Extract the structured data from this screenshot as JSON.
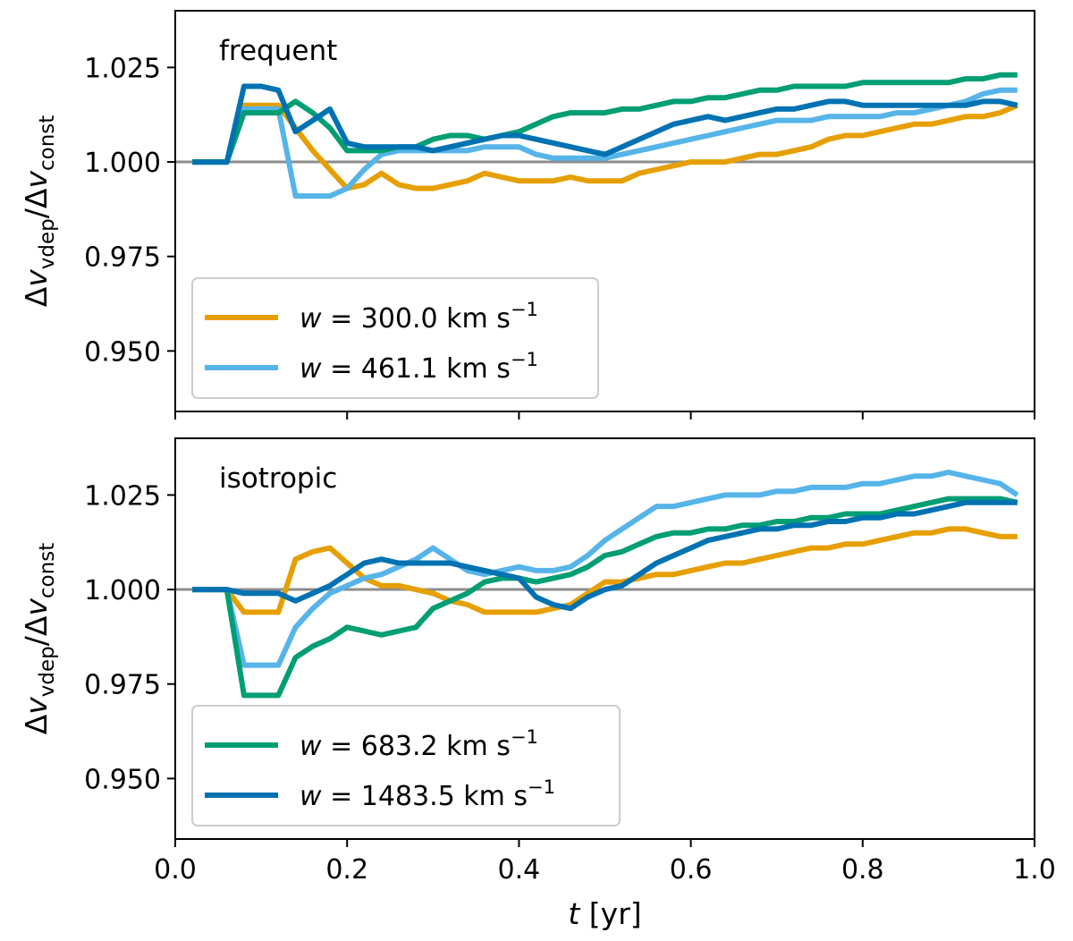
{
  "chart_data": [
    {
      "type": "line",
      "panel": "top",
      "annotation": "frequent",
      "ylabel": "Δv_vdep/Δv_const",
      "xlim": [
        0.0,
        1.0
      ],
      "ylim": [
        0.934,
        1.04
      ],
      "yticks": [
        0.95,
        0.975,
        1.0,
        1.025
      ],
      "ytick_labels": [
        "0.950",
        "0.975",
        "1.000",
        "1.025"
      ],
      "xticks": [
        0.0,
        0.2,
        0.4,
        0.6,
        0.8,
        1.0
      ],
      "reference_line": 1.0,
      "legend_position": "lower-left",
      "legend_series": [
        0,
        1
      ],
      "x": [
        0.02,
        0.04,
        0.06,
        0.08,
        0.1,
        0.12,
        0.14,
        0.16,
        0.18,
        0.2,
        0.22,
        0.24,
        0.26,
        0.28,
        0.3,
        0.32,
        0.34,
        0.36,
        0.38,
        0.4,
        0.42,
        0.44,
        0.46,
        0.48,
        0.5,
        0.52,
        0.54,
        0.56,
        0.58,
        0.6,
        0.62,
        0.64,
        0.66,
        0.68,
        0.7,
        0.72,
        0.74,
        0.76,
        0.78,
        0.8,
        0.82,
        0.84,
        0.86,
        0.88,
        0.9,
        0.92,
        0.94,
        0.96,
        0.98
      ],
      "series": [
        {
          "name": "w = 300.0 km s⁻¹",
          "legend_prefix": "w",
          "legend_value": "= 300.0 km s",
          "legend_exp": "−1",
          "color": "#E69F00",
          "values": [
            1.0,
            1.0,
            1.0,
            1.015,
            1.015,
            1.015,
            1.009,
            1.003,
            0.998,
            0.993,
            0.994,
            0.997,
            0.994,
            0.993,
            0.993,
            0.994,
            0.995,
            0.997,
            0.996,
            0.995,
            0.995,
            0.995,
            0.996,
            0.995,
            0.995,
            0.995,
            0.997,
            0.998,
            0.999,
            1.0,
            1.0,
            1.0,
            1.001,
            1.002,
            1.002,
            1.003,
            1.004,
            1.006,
            1.007,
            1.007,
            1.008,
            1.009,
            1.01,
            1.01,
            1.011,
            1.012,
            1.012,
            1.013,
            1.015
          ]
        },
        {
          "name": "w = 461.1 km s⁻¹",
          "legend_prefix": "w",
          "legend_value": "= 461.1 km s",
          "legend_exp": "−1",
          "color": "#56B4E9",
          "values": [
            1.0,
            1.0,
            1.0,
            1.014,
            1.014,
            1.014,
            0.991,
            0.991,
            0.991,
            0.993,
            0.998,
            1.002,
            1.003,
            1.003,
            1.003,
            1.003,
            1.003,
            1.004,
            1.004,
            1.004,
            1.002,
            1.001,
            1.001,
            1.001,
            1.001,
            1.002,
            1.003,
            1.004,
            1.005,
            1.006,
            1.007,
            1.008,
            1.009,
            1.01,
            1.011,
            1.011,
            1.011,
            1.012,
            1.012,
            1.012,
            1.012,
            1.013,
            1.013,
            1.014,
            1.015,
            1.016,
            1.018,
            1.019,
            1.019
          ]
        },
        {
          "name": "w = 683.2 km s⁻¹",
          "color": "#009E73",
          "values": [
            1.0,
            1.0,
            1.0,
            1.013,
            1.013,
            1.013,
            1.016,
            1.013,
            1.009,
            1.003,
            1.003,
            1.003,
            1.004,
            1.004,
            1.006,
            1.007,
            1.007,
            1.006,
            1.007,
            1.008,
            1.01,
            1.012,
            1.013,
            1.013,
            1.013,
            1.014,
            1.014,
            1.015,
            1.016,
            1.016,
            1.017,
            1.017,
            1.018,
            1.019,
            1.019,
            1.02,
            1.02,
            1.02,
            1.02,
            1.021,
            1.021,
            1.021,
            1.021,
            1.021,
            1.021,
            1.022,
            1.022,
            1.023,
            1.023
          ]
        },
        {
          "name": "w = 1483.5 km s⁻¹",
          "color": "#0072B2",
          "values": [
            1.0,
            1.0,
            1.0,
            1.02,
            1.02,
            1.019,
            1.008,
            1.011,
            1.014,
            1.005,
            1.004,
            1.004,
            1.004,
            1.004,
            1.003,
            1.004,
            1.005,
            1.006,
            1.007,
            1.007,
            1.006,
            1.005,
            1.004,
            1.003,
            1.002,
            1.004,
            1.006,
            1.008,
            1.01,
            1.011,
            1.012,
            1.011,
            1.012,
            1.013,
            1.014,
            1.014,
            1.015,
            1.016,
            1.016,
            1.015,
            1.015,
            1.015,
            1.015,
            1.015,
            1.015,
            1.015,
            1.016,
            1.016,
            1.015
          ]
        }
      ]
    },
    {
      "type": "line",
      "panel": "bottom",
      "annotation": "isotropic",
      "ylabel": "Δv_vdep/Δv_const",
      "xlabel": "t [yr]",
      "xlabel_var": "t",
      "xlabel_unit": " [yr]",
      "xlim": [
        0.0,
        1.0
      ],
      "ylim": [
        0.934,
        1.04
      ],
      "yticks": [
        0.95,
        0.975,
        1.0,
        1.025
      ],
      "ytick_labels": [
        "0.950",
        "0.975",
        "1.000",
        "1.025"
      ],
      "xticks": [
        0.0,
        0.2,
        0.4,
        0.6,
        0.8,
        1.0
      ],
      "xtick_labels": [
        "0.0",
        "0.2",
        "0.4",
        "0.6",
        "0.8",
        "1.0"
      ],
      "reference_line": 1.0,
      "legend_position": "lower-left",
      "legend_series": [
        2,
        3
      ],
      "x": [
        0.02,
        0.04,
        0.06,
        0.08,
        0.1,
        0.12,
        0.14,
        0.16,
        0.18,
        0.2,
        0.22,
        0.24,
        0.26,
        0.28,
        0.3,
        0.32,
        0.34,
        0.36,
        0.38,
        0.4,
        0.42,
        0.44,
        0.46,
        0.48,
        0.5,
        0.52,
        0.54,
        0.56,
        0.58,
        0.6,
        0.62,
        0.64,
        0.66,
        0.68,
        0.7,
        0.72,
        0.74,
        0.76,
        0.78,
        0.8,
        0.82,
        0.84,
        0.86,
        0.88,
        0.9,
        0.92,
        0.94,
        0.96,
        0.98
      ],
      "series": [
        {
          "name": "w = 300.0 km s⁻¹",
          "color": "#E69F00",
          "values": [
            1.0,
            1.0,
            1.0,
            0.994,
            0.994,
            0.994,
            1.008,
            1.01,
            1.011,
            1.007,
            1.003,
            1.001,
            1.001,
            1.0,
            0.999,
            0.997,
            0.996,
            0.994,
            0.994,
            0.994,
            0.994,
            0.995,
            0.996,
            0.999,
            1.002,
            1.002,
            1.003,
            1.004,
            1.004,
            1.005,
            1.006,
            1.007,
            1.007,
            1.008,
            1.009,
            1.01,
            1.011,
            1.011,
            1.012,
            1.012,
            1.013,
            1.014,
            1.015,
            1.015,
            1.016,
            1.016,
            1.015,
            1.014,
            1.014
          ]
        },
        {
          "name": "w = 461.1 km s⁻¹",
          "color": "#56B4E9",
          "values": [
            1.0,
            1.0,
            1.0,
            0.98,
            0.98,
            0.98,
            0.99,
            0.995,
            0.999,
            1.001,
            1.003,
            1.004,
            1.006,
            1.008,
            1.011,
            1.008,
            1.005,
            1.004,
            1.005,
            1.006,
            1.005,
            1.005,
            1.006,
            1.009,
            1.013,
            1.016,
            1.019,
            1.022,
            1.022,
            1.023,
            1.024,
            1.025,
            1.025,
            1.025,
            1.026,
            1.026,
            1.027,
            1.027,
            1.027,
            1.028,
            1.028,
            1.029,
            1.03,
            1.03,
            1.031,
            1.03,
            1.029,
            1.028,
            1.025
          ]
        },
        {
          "name": "w = 683.2 km s⁻¹",
          "legend_prefix": "w",
          "legend_value": "= 683.2 km s",
          "legend_exp": "−1",
          "color": "#009E73",
          "values": [
            1.0,
            1.0,
            1.0,
            0.972,
            0.972,
            0.972,
            0.982,
            0.985,
            0.987,
            0.99,
            0.989,
            0.988,
            0.989,
            0.99,
            0.995,
            0.997,
            0.999,
            1.002,
            1.003,
            1.003,
            1.002,
            1.003,
            1.004,
            1.006,
            1.009,
            1.01,
            1.012,
            1.014,
            1.015,
            1.015,
            1.016,
            1.016,
            1.017,
            1.017,
            1.018,
            1.018,
            1.019,
            1.019,
            1.02,
            1.02,
            1.02,
            1.021,
            1.022,
            1.023,
            1.024,
            1.024,
            1.024,
            1.024,
            1.023
          ]
        },
        {
          "name": "w = 1483.5 km s⁻¹",
          "legend_prefix": "w",
          "legend_value": "= 1483.5 km s",
          "legend_exp": "−1",
          "color": "#0072B2",
          "values": [
            1.0,
            1.0,
            1.0,
            0.999,
            0.999,
            0.999,
            0.997,
            0.999,
            1.001,
            1.004,
            1.007,
            1.008,
            1.007,
            1.007,
            1.007,
            1.007,
            1.006,
            1.005,
            1.004,
            1.003,
            0.998,
            0.996,
            0.995,
            0.998,
            1.0,
            1.001,
            1.004,
            1.007,
            1.009,
            1.011,
            1.013,
            1.014,
            1.015,
            1.016,
            1.016,
            1.017,
            1.017,
            1.018,
            1.018,
            1.019,
            1.019,
            1.02,
            1.02,
            1.021,
            1.022,
            1.023,
            1.023,
            1.023,
            1.023
          ]
        }
      ]
    }
  ]
}
